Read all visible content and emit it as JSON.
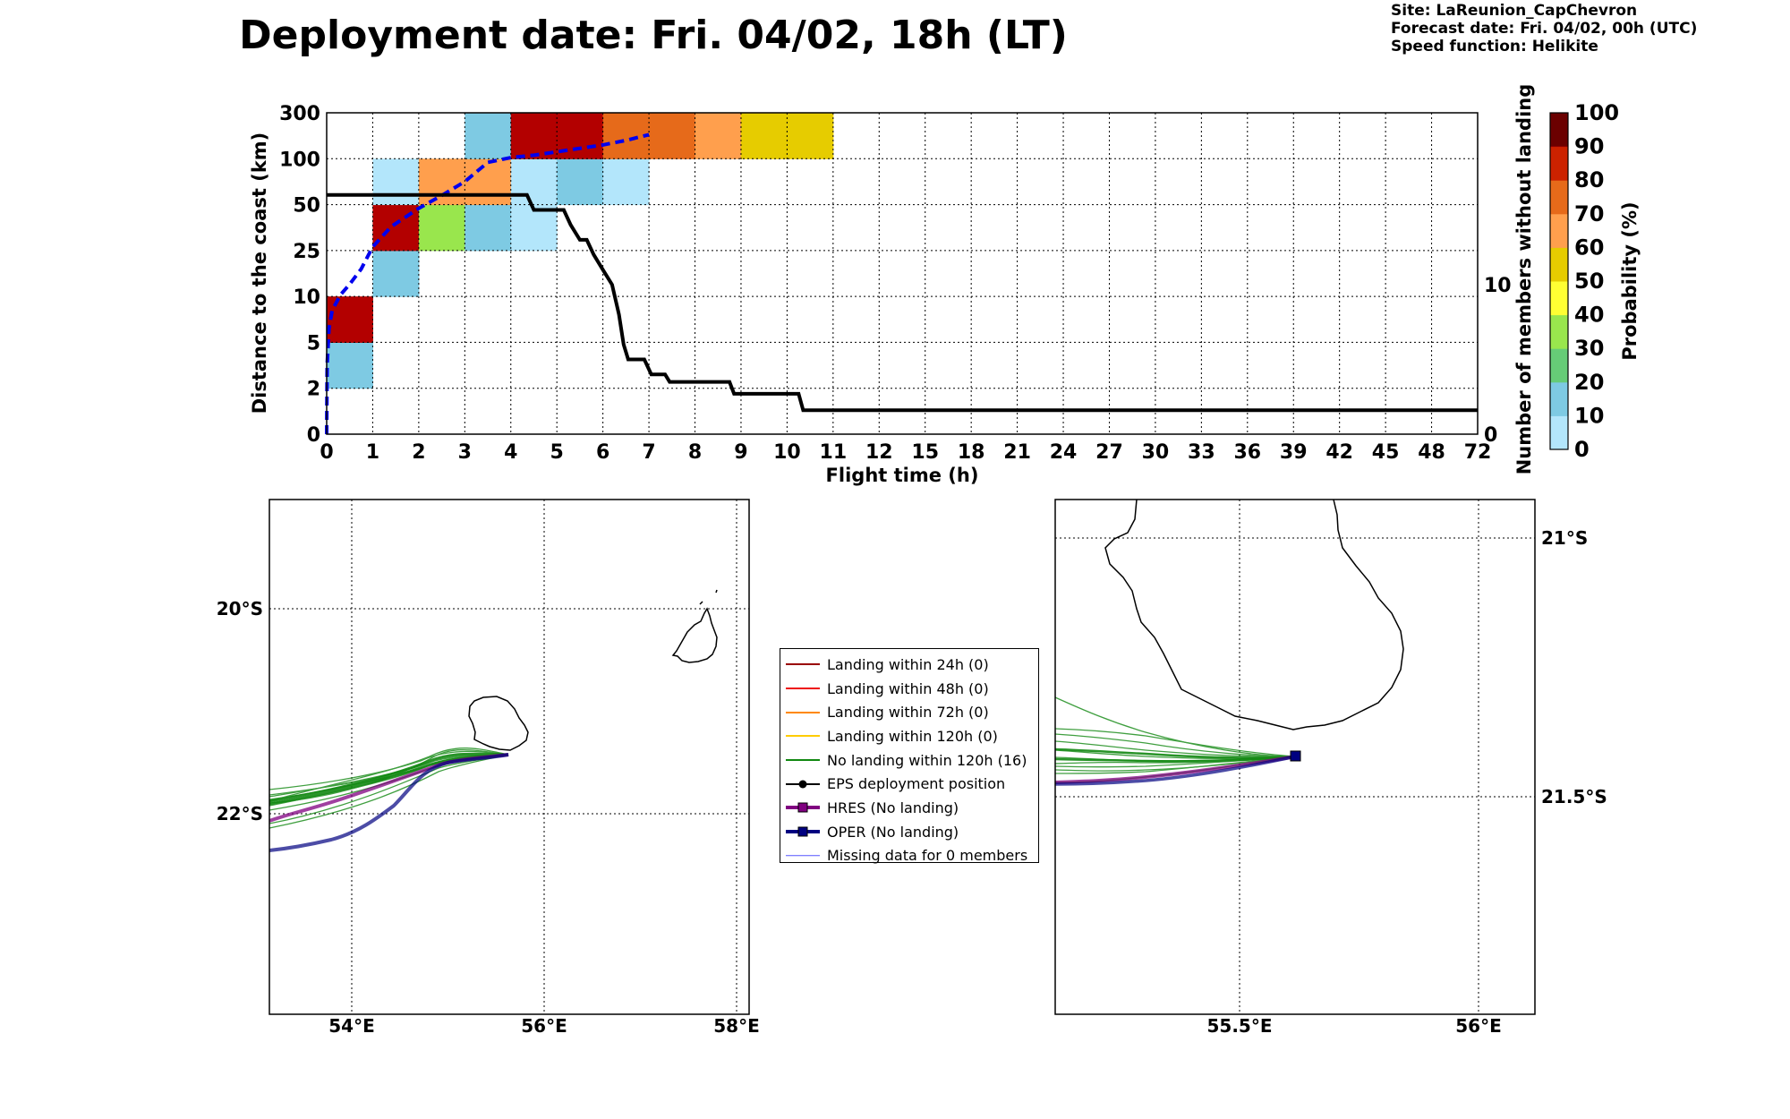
{
  "header": {
    "title": "Deployment date: Fri. 04/02, 18h (LT)",
    "site": "Site: LaReunion_CapChevron",
    "forecast_date": "Forecast date: Fri. 04/02, 00h (UTC)",
    "speed_function": "Speed function: Helikite"
  },
  "chart_data": [
    {
      "type": "heatmap",
      "xlabel": "Flight time (h)",
      "ylabel": "Distance to the coast (km)",
      "y2label": "Number of members without landing",
      "x_tick_labels": [
        "0",
        "1",
        "2",
        "3",
        "4",
        "5",
        "6",
        "7",
        "8",
        "9",
        "10",
        "11",
        "12",
        "15",
        "18",
        "21",
        "24",
        "27",
        "30",
        "33",
        "36",
        "39",
        "42",
        "45",
        "48",
        "72"
      ],
      "y_tick_labels": [
        "0",
        "2",
        "5",
        "10",
        "25",
        "50",
        "100",
        "300"
      ],
      "y2_tick_labels": [
        "0",
        "10"
      ],
      "grid": true,
      "colorbar": {
        "label": "Probability (%)",
        "tick_labels": [
          "0",
          "10",
          "20",
          "30",
          "40",
          "50",
          "60",
          "70",
          "80",
          "90",
          "100"
        ],
        "colors": [
          "#b3e6fb",
          "#7ecae3",
          "#66cc77",
          "#99e64d",
          "#ffff33",
          "#e6cc00",
          "#ff9f4d",
          "#e66a1a",
          "#cc2200",
          "#b30000",
          "#6b0000"
        ]
      },
      "cells": [
        {
          "x_bin": 0,
          "y_bin": 1,
          "color": "#7ecae3"
        },
        {
          "x_bin": 0,
          "y_bin": 2,
          "color": "#b30000"
        },
        {
          "x_bin": 1,
          "y_bin": 3,
          "color": "#7ecae3"
        },
        {
          "x_bin": 1,
          "y_bin": 4,
          "color": "#b30000"
        },
        {
          "x_bin": 1,
          "y_bin": 5,
          "color": "#b3e6fb"
        },
        {
          "x_bin": 2,
          "y_bin": 4,
          "color": "#99e64d"
        },
        {
          "x_bin": 2,
          "y_bin": 5,
          "color": "#ff9f4d"
        },
        {
          "x_bin": 3,
          "y_bin": 4,
          "color": "#7ecae3"
        },
        {
          "x_bin": 3,
          "y_bin": 5,
          "color": "#ff9f4d"
        },
        {
          "x_bin": 3,
          "y_bin": 6,
          "color": "#7ecae3"
        },
        {
          "x_bin": 4,
          "y_bin": 4,
          "color": "#b3e6fb"
        },
        {
          "x_bin": 4,
          "y_bin": 5,
          "color": "#b3e6fb"
        },
        {
          "x_bin": 4,
          "y_bin": 6,
          "color": "#b30000"
        },
        {
          "x_bin": 5,
          "y_bin": 5,
          "color": "#7ecae3"
        },
        {
          "x_bin": 5,
          "y_bin": 6,
          "color": "#b30000"
        },
        {
          "x_bin": 6,
          "y_bin": 5,
          "color": "#b3e6fb"
        },
        {
          "x_bin": 6,
          "y_bin": 6,
          "color": "#e66a1a"
        },
        {
          "x_bin": 7,
          "y_bin": 6,
          "color": "#e66a1a"
        },
        {
          "x_bin": 8,
          "y_bin": 6,
          "color": "#ff9f4d"
        },
        {
          "x_bin": 9,
          "y_bin": 6,
          "color": "#e6cc00"
        },
        {
          "x_bin": 10,
          "y_bin": 6,
          "color": "#e6cc00"
        }
      ],
      "series": [
        {
          "name": "",
          "style": "dashed",
          "color": "#0000ee",
          "points": [
            [
              0,
              0
            ],
            [
              0.01,
              3.5
            ],
            [
              0.05,
              6.5
            ],
            [
              0.12,
              8.5
            ],
            [
              0.3,
              10.5
            ],
            [
              0.5,
              14
            ],
            [
              0.75,
              19
            ],
            [
              1.0,
              27
            ],
            [
              1.4,
              38
            ],
            [
              2.0,
              48
            ],
            [
              2.5,
              60
            ],
            [
              3.0,
              75
            ],
            [
              3.5,
              96
            ],
            [
              4.0,
              105
            ],
            [
              4.5,
              115
            ],
            [
              5.0,
              130
            ],
            [
              5.5,
              145
            ],
            [
              6.0,
              160
            ],
            [
              6.5,
              180
            ],
            [
              7.0,
              205
            ]
          ]
        },
        {
          "name": "",
          "style": "solid",
          "color": "#000000",
          "axis": "right",
          "points": [
            [
              0,
              16
            ],
            [
              4.35,
              16
            ],
            [
              4.5,
              15
            ],
            [
              5.15,
              15
            ],
            [
              5.3,
              14
            ],
            [
              5.5,
              13
            ],
            [
              5.65,
              13
            ],
            [
              5.8,
              12
            ],
            [
              6.0,
              11
            ],
            [
              6.2,
              10
            ],
            [
              6.35,
              8
            ],
            [
              6.45,
              6
            ],
            [
              6.55,
              5
            ],
            [
              6.9,
              5
            ],
            [
              7.05,
              4
            ],
            [
              7.35,
              4
            ],
            [
              7.45,
              3.5
            ],
            [
              8.75,
              3.5
            ],
            [
              8.85,
              2.7
            ],
            [
              10.25,
              2.7
            ],
            [
              10.35,
              1.6
            ],
            [
              72,
              1.6
            ]
          ]
        }
      ]
    },
    {
      "type": "map",
      "x_tick_labels": [
        "54°E",
        "56°E",
        "58°E"
      ],
      "y_tick_labels": [
        "20°S",
        "22°S"
      ]
    },
    {
      "type": "map",
      "x_tick_labels": [
        "55.5°E",
        "56°E"
      ],
      "y_tick_labels": [
        "21°S",
        "21.5°S"
      ]
    }
  ],
  "legend": {
    "items": [
      {
        "label": "Landing within 24h (0)",
        "color": "#990000",
        "marker": "none",
        "width": 2
      },
      {
        "label": "Landing within 48h (0)",
        "color": "#ee1111",
        "marker": "none",
        "width": 2
      },
      {
        "label": "Landing within 72h (0)",
        "color": "#ff8800",
        "marker": "none",
        "width": 2
      },
      {
        "label": "Landing within 120h (0)",
        "color": "#ffcc00",
        "marker": "none",
        "width": 2
      },
      {
        "label": "No landing within 120h (16)",
        "color": "#118811",
        "marker": "none",
        "width": 2
      },
      {
        "label": "EPS deployment position",
        "color": "#000000",
        "marker": "circle",
        "width": 2
      },
      {
        "label": "HRES (No landing)",
        "color": "#800080",
        "marker": "square",
        "width": 4
      },
      {
        "label": "OPER (No landing)",
        "color": "#000080",
        "marker": "square",
        "width": 4
      },
      {
        "label": "Missing data for 0 members",
        "color": "#5555ff",
        "marker": "none",
        "width": 1.5
      }
    ]
  }
}
